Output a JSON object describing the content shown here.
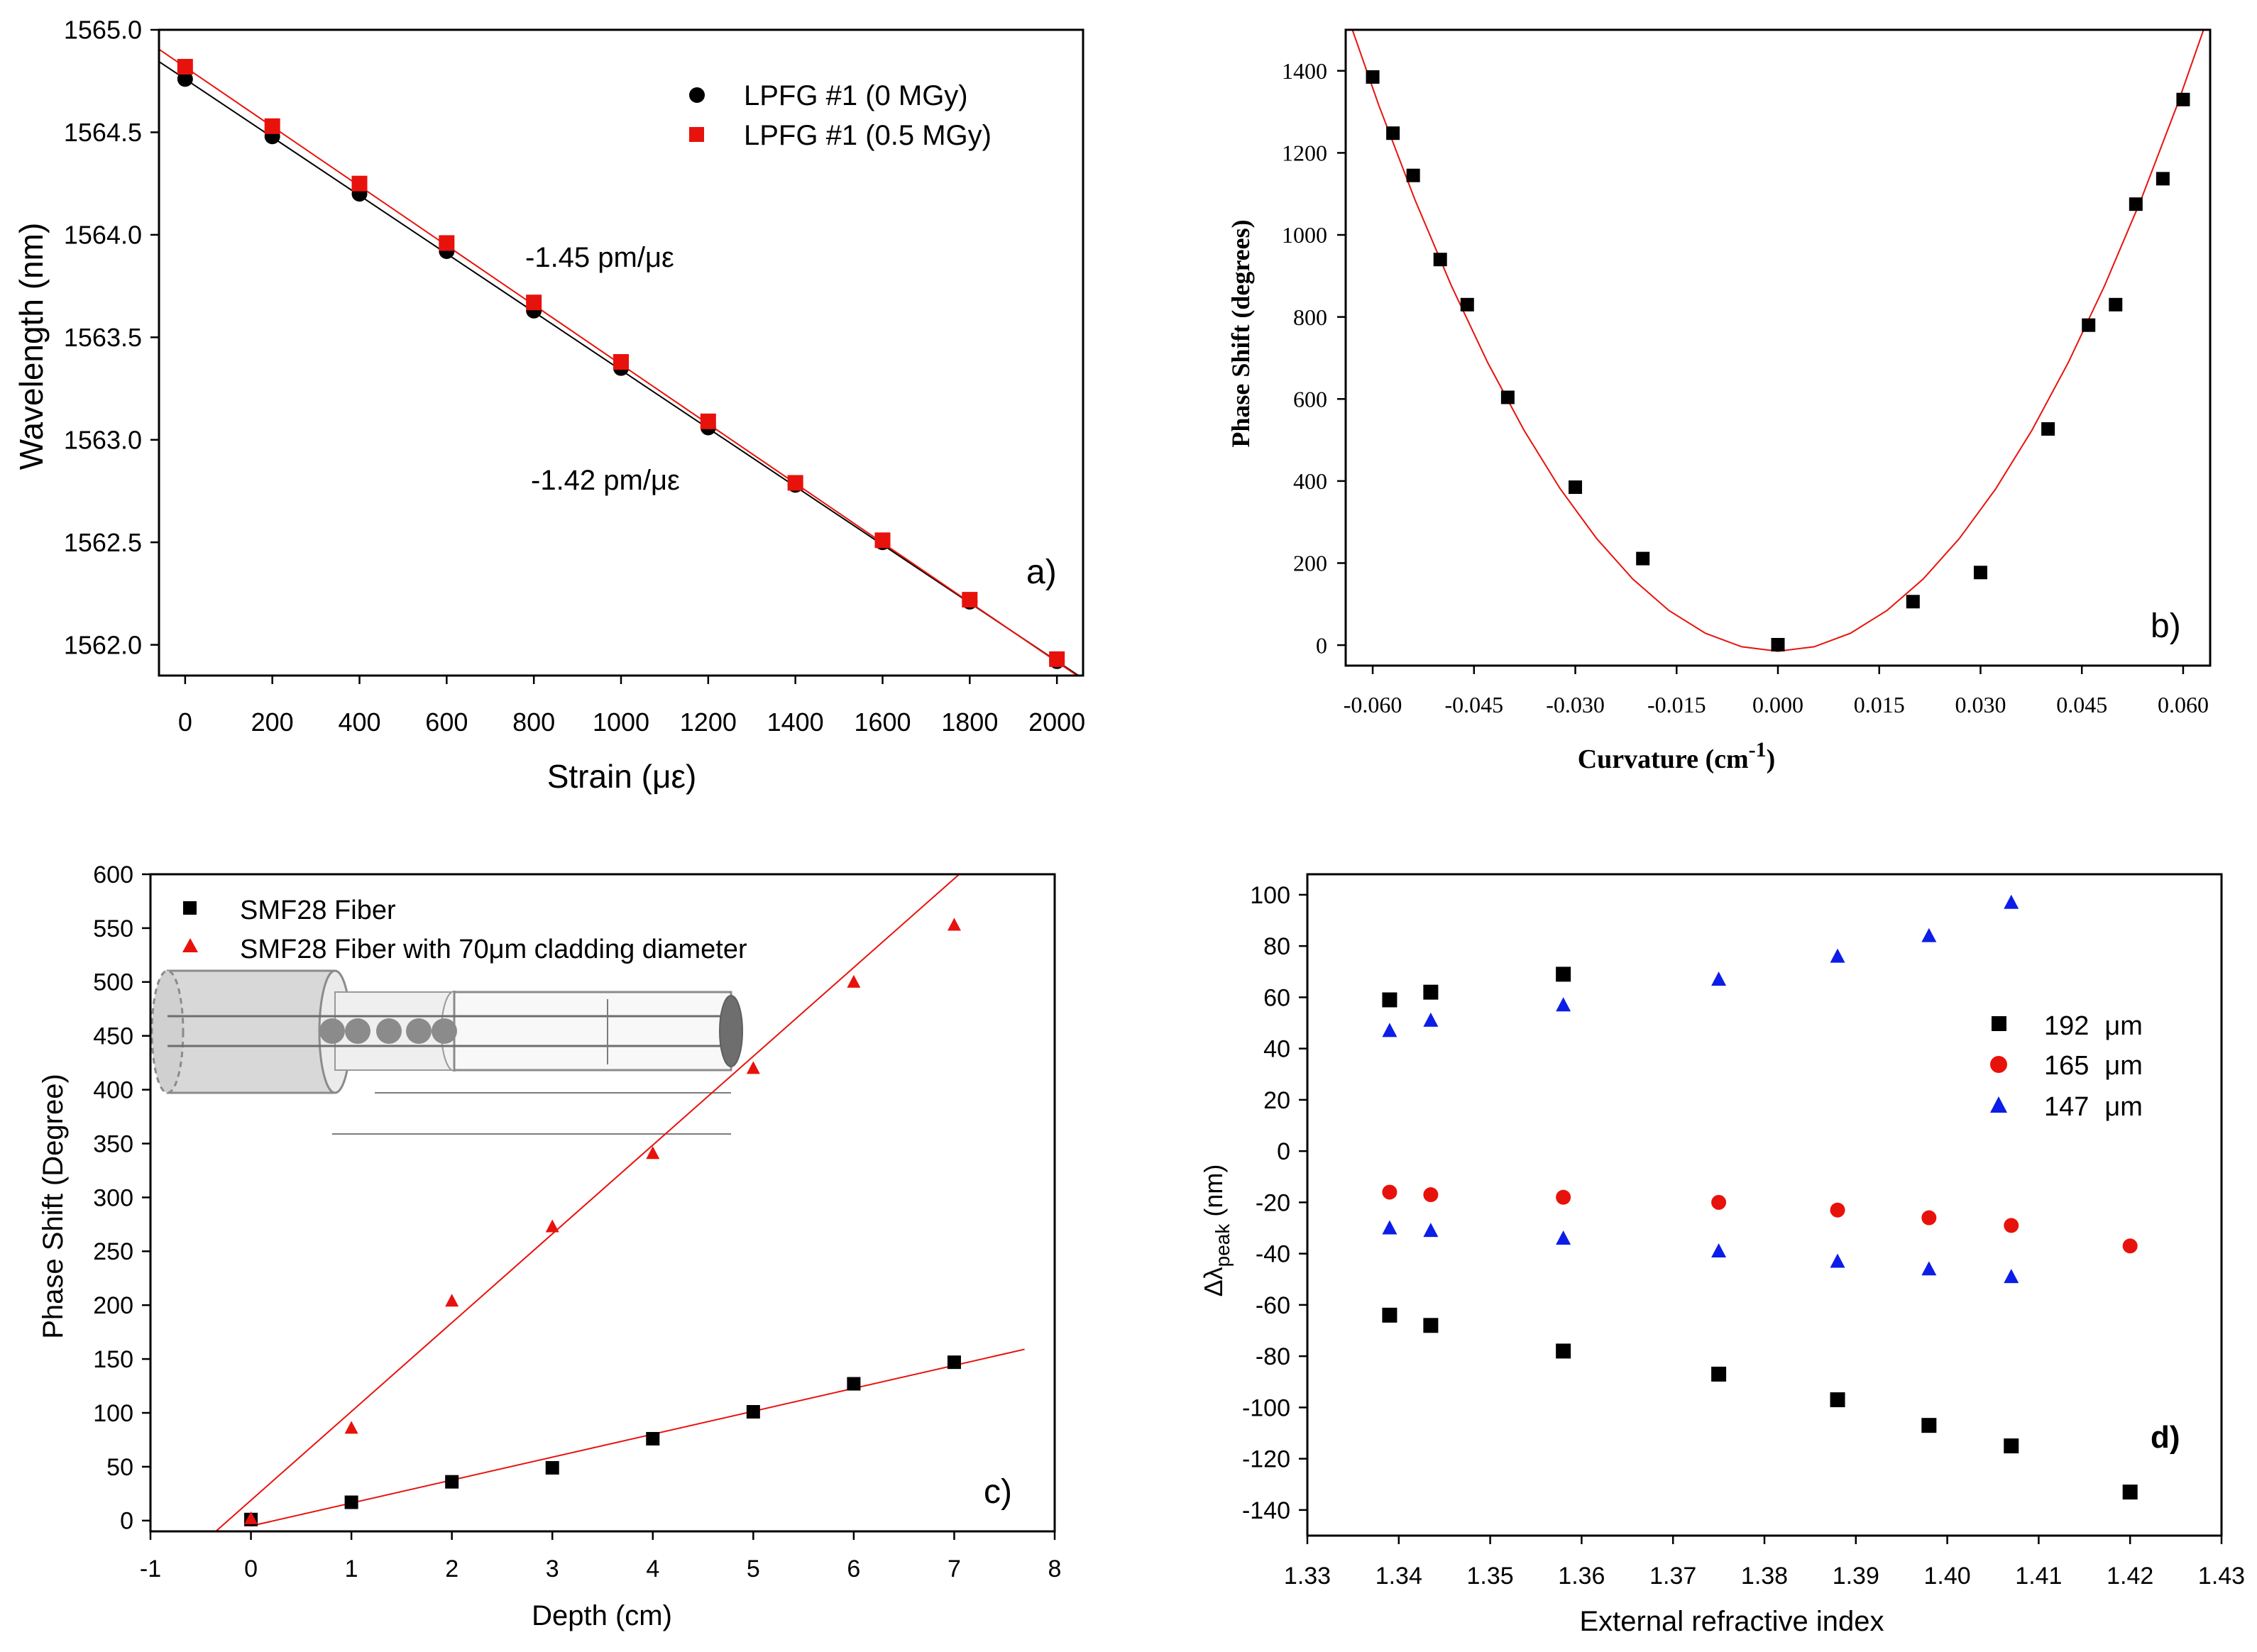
{
  "chart_data": [
    {
      "id": "a",
      "type": "scatter",
      "panel_label": "a)",
      "xlabel": "Strain (με)",
      "ylabel": "Wavelength (nm)",
      "xlim": [
        -60,
        2060
      ],
      "ylim": [
        1561.85,
        1565.0
      ],
      "xticks": [
        0,
        200,
        400,
        600,
        800,
        1000,
        1200,
        1400,
        1600,
        1800,
        2000
      ],
      "xtick_labels": [
        "0",
        "200",
        "400",
        "600",
        "800",
        "1000",
        "1200",
        "1400",
        "1600",
        "1800",
        "2000"
      ],
      "yticks": [
        1562.0,
        1562.5,
        1563.0,
        1563.5,
        1564.0,
        1564.5,
        1565.0
      ],
      "ytick_labels": [
        "1562.0",
        "1562.5",
        "1563.0",
        "1563.5",
        "1564.0",
        "1564.5",
        "1565.0"
      ],
      "series": [
        {
          "name": "LPFG #1 (0 MGy)",
          "marker": "circle",
          "color": "#000000",
          "x": [
            0,
            200,
            400,
            600,
            800,
            1000,
            1200,
            1400,
            1600,
            1800,
            2000
          ],
          "y": [
            1564.76,
            1564.48,
            1564.2,
            1563.92,
            1563.63,
            1563.35,
            1563.06,
            1562.78,
            1562.5,
            1562.21,
            1561.92
          ],
          "fit": {
            "color": "#000000",
            "x": [
              -60,
              2060
            ],
            "y": [
              1564.845,
              1561.835
            ]
          }
        },
        {
          "name": "LPFG #1 (0.5 MGy)",
          "marker": "square",
          "color": "#e8120c",
          "x": [
            0,
            200,
            400,
            600,
            800,
            1000,
            1200,
            1400,
            1600,
            1800,
            2000
          ],
          "y": [
            1564.82,
            1564.53,
            1564.25,
            1563.96,
            1563.67,
            1563.38,
            1563.09,
            1562.79,
            1562.51,
            1562.22,
            1561.93
          ],
          "fit": {
            "color": "#e8120c",
            "x": [
              -60,
              2060
            ],
            "y": [
              1564.905,
              1561.83
            ]
          }
        }
      ],
      "annotations": [
        "-1.45 pm/με",
        "-1.42 pm/με"
      ]
    },
    {
      "id": "b",
      "type": "scatter",
      "panel_label": "b)",
      "xlabel": "Curvature (cm",
      "xlabel_sup": "-1",
      "xlabel_tail": ")",
      "ylabel": "Phase Shift (degrees)",
      "xlim": [
        -0.064,
        0.064
      ],
      "ylim": [
        -50,
        1500
      ],
      "xticks": [
        -0.06,
        -0.045,
        -0.03,
        -0.015,
        0.0,
        0.015,
        0.03,
        0.045,
        0.06
      ],
      "xtick_labels": [
        "-0.060",
        "-0.045",
        "-0.030",
        "-0.015",
        "0.000",
        "0.015",
        "0.030",
        "0.045",
        "0.060"
      ],
      "yticks": [
        0,
        200,
        400,
        600,
        800,
        1000,
        1200,
        1400
      ],
      "ytick_labels": [
        "0",
        "200",
        "400",
        "600",
        "800",
        "1000",
        "1200",
        "1400"
      ],
      "series": [
        {
          "name": "data",
          "marker": "square",
          "color": "#000000",
          "x": [
            -0.06,
            -0.057,
            -0.054,
            -0.05,
            -0.046,
            -0.04,
            -0.03,
            -0.02,
            0.0,
            0.02,
            0.03,
            0.04,
            0.046,
            0.05,
            0.053,
            0.057,
            0.06
          ],
          "y": [
            1385,
            1248,
            1145,
            940,
            830,
            604,
            385,
            211,
            1,
            106,
            177,
            527,
            780,
            830,
            1075,
            1137,
            1330
          ],
          "fit": {
            "color": "#e8120c",
            "quadratic": {
              "a": 381000,
              "b": -5.0,
              "c": -15
            },
            "x_range": [
              -0.0645,
              0.0645
            ]
          }
        }
      ]
    },
    {
      "id": "c",
      "type": "scatter",
      "panel_label": "c)",
      "xlabel": "Depth (cm)",
      "ylabel": "Phase Shift (Degree)",
      "xlim": [
        -1,
        8
      ],
      "ylim": [
        -10,
        600
      ],
      "xticks": [
        -1,
        0,
        1,
        2,
        3,
        4,
        5,
        6,
        7,
        8
      ],
      "xtick_labels": [
        "-1",
        "0",
        "1",
        "2",
        "3",
        "4",
        "5",
        "6",
        "7",
        "8"
      ],
      "yticks": [
        0,
        50,
        100,
        150,
        200,
        250,
        300,
        350,
        400,
        450,
        500,
        550,
        600
      ],
      "ytick_labels": [
        "0",
        "50",
        "100",
        "150",
        "200",
        "250",
        "300",
        "350",
        "400",
        "450",
        "500",
        "550",
        "600"
      ],
      "series": [
        {
          "name": "SMF28 Fiber",
          "marker": "square",
          "color": "#000000",
          "x": [
            0,
            1,
            2,
            3,
            4,
            5,
            6,
            7
          ],
          "y": [
            1,
            17,
            36,
            49,
            76,
            101,
            127,
            147
          ],
          "fit": {
            "color": "#e8120c",
            "x": [
              0,
              7.7
            ],
            "y": [
              -5,
              159
            ]
          }
        },
        {
          "name": "SMF28 Fiber with 70μm cladding diameter",
          "marker": "triangle",
          "color": "#e8120c",
          "x": [
            0,
            1,
            2,
            3,
            4,
            5,
            6,
            7
          ],
          "y": [
            2,
            86,
            204,
            273,
            341,
            420,
            500,
            553
          ],
          "fit": {
            "color": "#e8120c",
            "x": [
              -0.35,
              7.05
            ],
            "y": [
              -10,
              600
            ]
          }
        }
      ]
    },
    {
      "id": "d",
      "type": "scatter",
      "panel_label": "d)",
      "xlabel": "External refractive index",
      "ylabel": "Δλ",
      "ylabel_sub": "peak",
      "ylabel_tail": " (nm)",
      "xlim": [
        1.33,
        1.43
      ],
      "ylim": [
        -150,
        108
      ],
      "xticks": [
        1.33,
        1.34,
        1.35,
        1.36,
        1.37,
        1.38,
        1.39,
        1.4,
        1.41,
        1.42,
        1.43
      ],
      "xtick_labels": [
        "1.33",
        "1.34",
        "1.35",
        "1.36",
        "1.37",
        "1.38",
        "1.39",
        "1.40",
        "1.41",
        "1.42",
        "1.43"
      ],
      "yticks": [
        -140,
        -120,
        -100,
        -80,
        -60,
        -40,
        -20,
        0,
        20,
        40,
        60,
        80,
        100
      ],
      "ytick_labels": [
        "-140",
        "-120",
        "-100",
        "-80",
        "-60",
        "-40",
        "-20",
        "0",
        "20",
        "40",
        "60",
        "80",
        "100"
      ],
      "series": [
        {
          "name": "192",
          "unit": "μm",
          "marker": "square",
          "color": "#000000",
          "x": [
            1.339,
            1.3435,
            1.358,
            1.339,
            1.3435,
            1.358,
            1.375,
            1.388,
            1.398,
            1.407,
            1.42
          ],
          "y": [
            59,
            62,
            69,
            -64,
            -68,
            -78,
            -87,
            -97,
            -107,
            -115,
            -133
          ]
        },
        {
          "name": "165",
          "unit": "μm",
          "marker": "circle",
          "color": "#e8120c",
          "x": [
            1.339,
            1.3435,
            1.358,
            1.375,
            1.388,
            1.398,
            1.407,
            1.42
          ],
          "y": [
            -16,
            -17,
            -18,
            -20,
            -23,
            -26,
            -29,
            -37
          ]
        },
        {
          "name": "147",
          "unit": "μm",
          "marker": "triangle",
          "color": "#0c1de8",
          "x": [
            1.339,
            1.3435,
            1.358,
            1.375,
            1.388,
            1.398,
            1.407,
            1.339,
            1.3435,
            1.358,
            1.375,
            1.388,
            1.398,
            1.407
          ],
          "y": [
            47,
            51,
            57,
            67,
            76,
            84,
            97,
            -30,
            -31,
            -34,
            -39,
            -43,
            -46,
            -49
          ]
        }
      ]
    }
  ]
}
